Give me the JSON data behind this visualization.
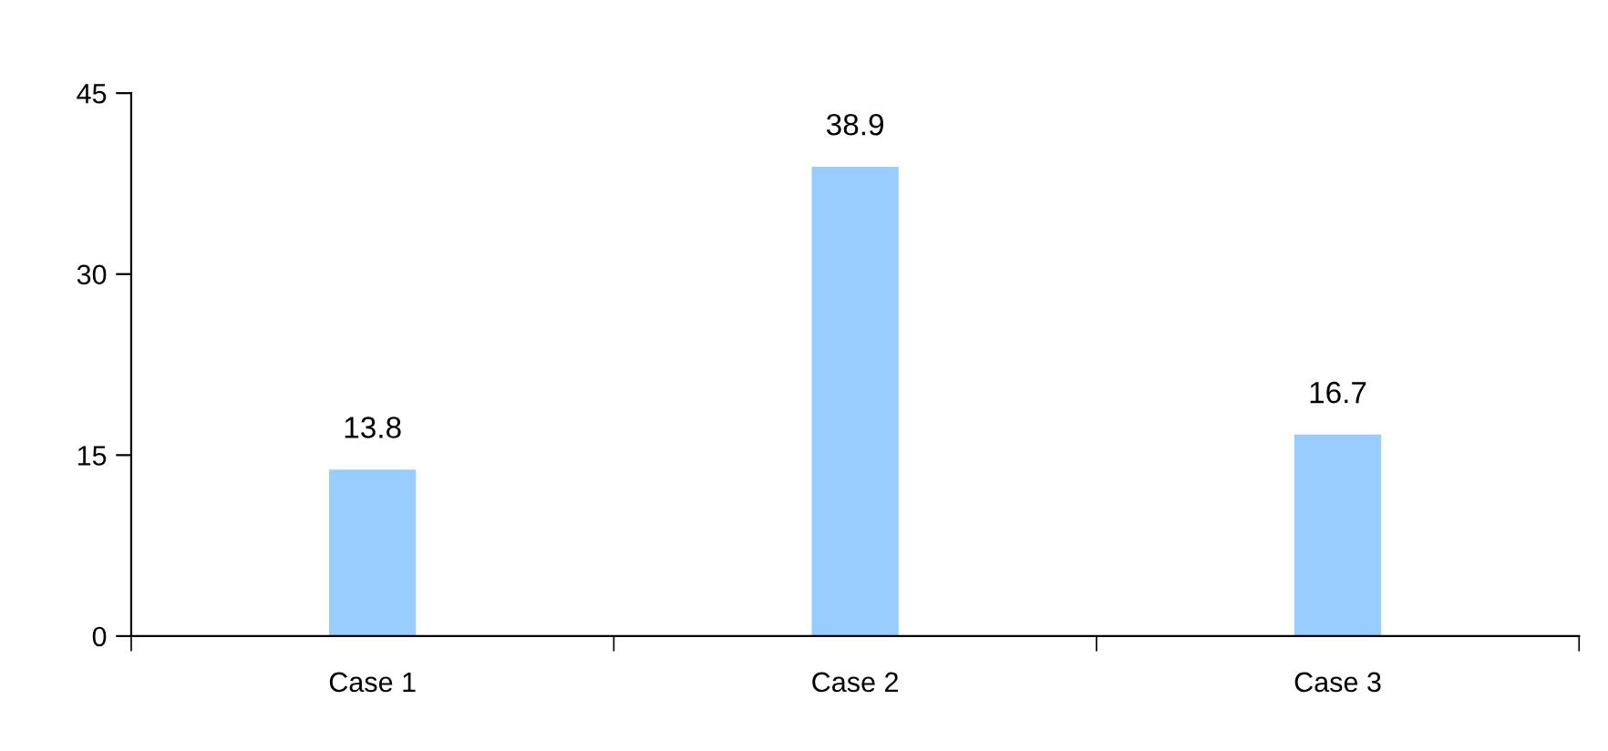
{
  "chart_data": {
    "type": "bar",
    "categories": [
      "Case 1",
      "Case 2",
      "Case 3"
    ],
    "values": [
      13.8,
      38.9,
      16.7
    ],
    "color": "#99ccff",
    "ylim": [
      0,
      45
    ],
    "yticks": [
      0,
      15,
      30,
      45
    ],
    "data_labels": true,
    "grid": false,
    "legend": false
  }
}
